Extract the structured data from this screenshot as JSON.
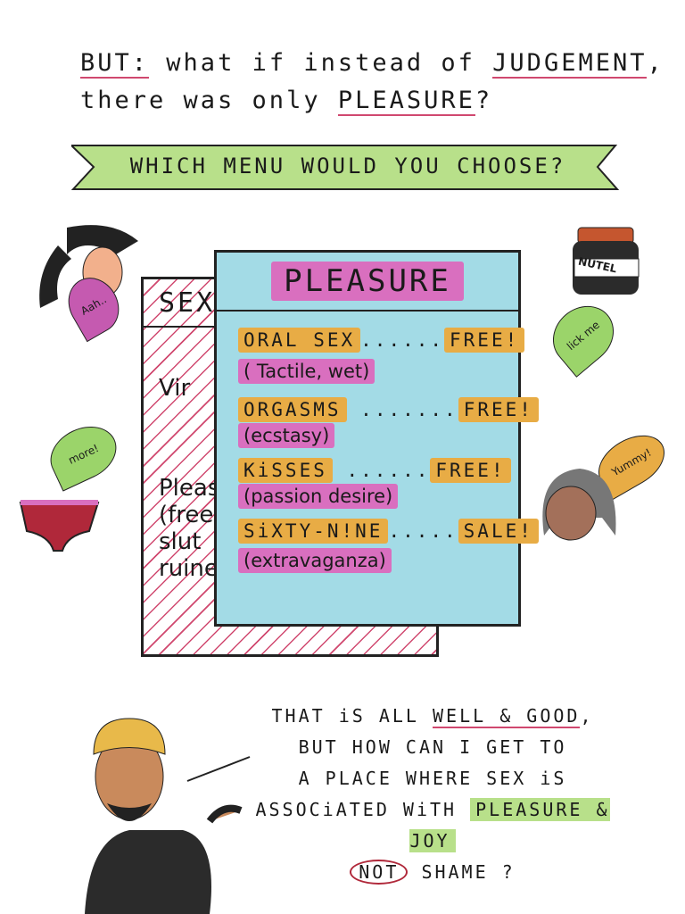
{
  "headline": {
    "but": "BUT:",
    "line1_mid": "what if instead of",
    "judgement": "JUDGEMENT",
    "comma": ",",
    "line2_start": "there was only",
    "pleasure": "PLEASURE",
    "qmark": "?"
  },
  "banner": {
    "text": "WHICH MENU WOULD YOU CHOOSE?",
    "color": "#b8e08a"
  },
  "back_menu": {
    "title": "SEX",
    "lines": [
      "Vir",
      "Pleas",
      "(free",
      "slut",
      "ruine"
    ]
  },
  "front_menu": {
    "title": "PLEASURE",
    "bg": "#a3dbe6",
    "items": [
      {
        "name": "ORAL SEX",
        "dots": "......",
        "price": "FREE!",
        "desc": "( Tactile, wet)"
      },
      {
        "name": "ORGASMS",
        "dots": ".......",
        "price": "FREE!",
        "desc": "(ecstasy)"
      },
      {
        "name": "KiSSES",
        "dots": "......",
        "price": "FREE!",
        "desc": "(passion desire)"
      },
      {
        "name": "SiXTY-N!NE",
        "dots": ".....",
        "price": "SALE!",
        "desc": "(extravaganza)"
      }
    ]
  },
  "bubbles": {
    "aah": "Aah..",
    "lick": "lick me",
    "more": "more!",
    "yummy": "Yummy!"
  },
  "jar_label": "NUTEL",
  "speech": {
    "l1a": "THAT iS ALL",
    "l1b": "WELL & GOOD",
    ",": ",",
    "l2": "BUT HOW CAN I GET TO",
    "l3": "A PLACE WHERE SEX iS",
    "l4a": "ASSOCiATED WiTH",
    "l4b": "PLEASURE & JOY",
    "l5a": "NOT",
    "l5b": "SHAME ?"
  },
  "colors": {
    "orange": "#e8ac45",
    "pink": "#d96fbf",
    "blue": "#a3dbe6",
    "green": "#b8e08a",
    "red": "#b0283a"
  }
}
